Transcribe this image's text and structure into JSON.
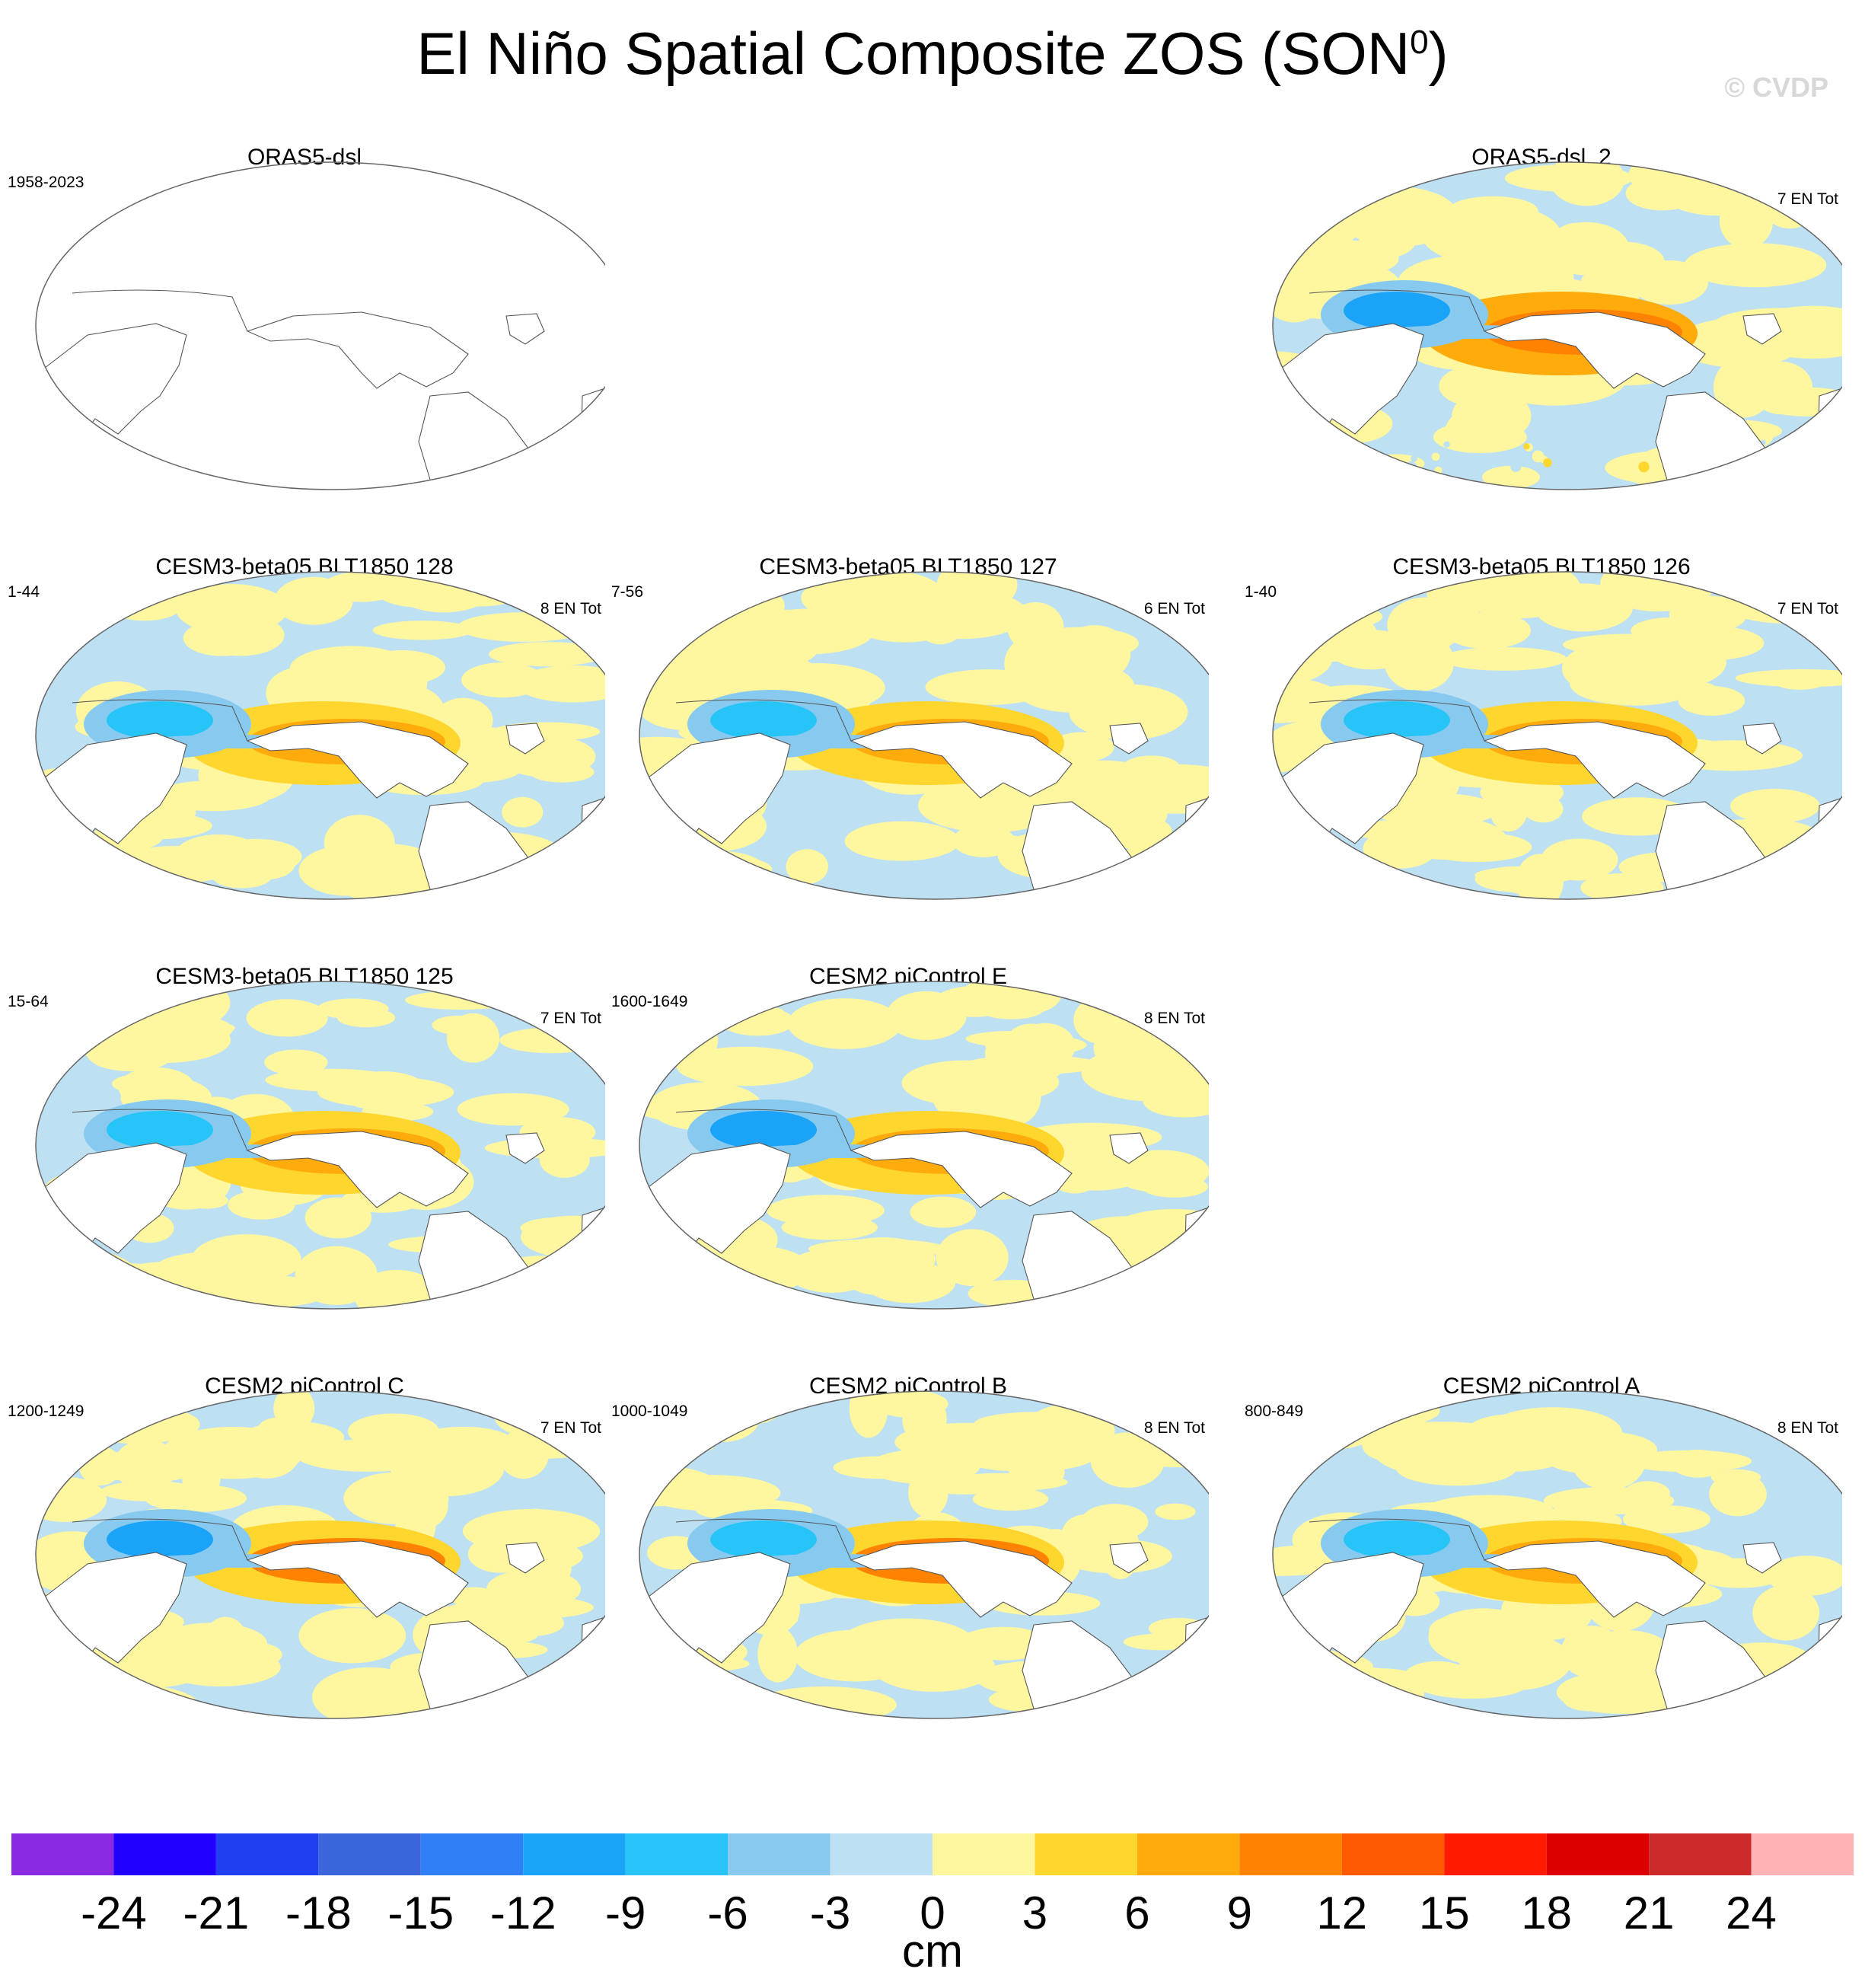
{
  "title": {
    "main": "El Niño Spatial Composite ZOS (SON",
    "superscript": "0",
    "close": ")"
  },
  "watermark": "© CVDP",
  "chart_data": {
    "type": "heatmap",
    "variable": "ZOS",
    "season": "SON0",
    "projection": "Robinson (Pacific-centered)",
    "units": "cm",
    "panels": [
      {
        "title": "ORAS5-dsl",
        "years": "1958-2023",
        "en_total": "",
        "blank": true
      },
      {
        "title": "ORAS5-dsl_2",
        "years": "",
        "en_total": "7 EN Tot",
        "blank": false,
        "pattern": {
          "west_pac": -12,
          "east_pac": 16,
          "sst_noise": true
        }
      },
      {
        "title": "CESM3-beta05 BLT1850 128",
        "years": "1-44",
        "en_total": "8 EN Tot",
        "blank": false,
        "pattern": {
          "west_pac": -9,
          "east_pac": 10
        }
      },
      {
        "title": "CESM3-beta05 BLT1850 127",
        "years": "7-56",
        "en_total": "6 EN Tot",
        "blank": false,
        "pattern": {
          "west_pac": -8,
          "east_pac": 11
        }
      },
      {
        "title": "CESM3-beta05 BLT1850 126",
        "years": "1-40",
        "en_total": "7 EN Tot",
        "blank": false,
        "pattern": {
          "west_pac": -9,
          "east_pac": 9
        }
      },
      {
        "title": "CESM3-beta05 BLT1850 125",
        "years": "15-64",
        "en_total": "7 EN Tot",
        "blank": false,
        "pattern": {
          "west_pac": -8,
          "east_pac": 10
        }
      },
      {
        "title": "CESM2 piControl E",
        "years": "1600-1649",
        "en_total": "8 EN Tot",
        "blank": false,
        "pattern": {
          "west_pac": -12,
          "east_pac": 11
        }
      },
      {
        "title": "CESM2 piControl C",
        "years": "1200-1249",
        "en_total": "7 EN Tot",
        "blank": false,
        "pattern": {
          "west_pac": -12,
          "east_pac": 13
        }
      },
      {
        "title": "CESM2 piControl B",
        "years": "1000-1049",
        "en_total": "8 EN Tot",
        "blank": false,
        "pattern": {
          "west_pac": -11,
          "east_pac": 13
        }
      },
      {
        "title": "CESM2 piControl A",
        "years": "800-849",
        "en_total": "8 EN Tot",
        "blank": false,
        "pattern": {
          "west_pac": -9,
          "east_pac": 11
        }
      }
    ],
    "colorbar": {
      "label": "cm",
      "levels": [
        "-24",
        "-21",
        "-18",
        "-15",
        "-12",
        "-9",
        "-6",
        "-3",
        "0",
        "3",
        "6",
        "9",
        "12",
        "15",
        "18",
        "21",
        "24"
      ],
      "colors": [
        "#8a2be2",
        "#2200ff",
        "#1f3ff0",
        "#3b66db",
        "#2f80f6",
        "#1ba3f7",
        "#27c4f7",
        "#88caef",
        "#bde1f2",
        "#fff6a0",
        "#ffd62e",
        "#ffab0c",
        "#ff8300",
        "#ff5a00",
        "#ff1a00",
        "#dd0000",
        "#cc2a2a",
        "#ffb3b3"
      ]
    }
  }
}
